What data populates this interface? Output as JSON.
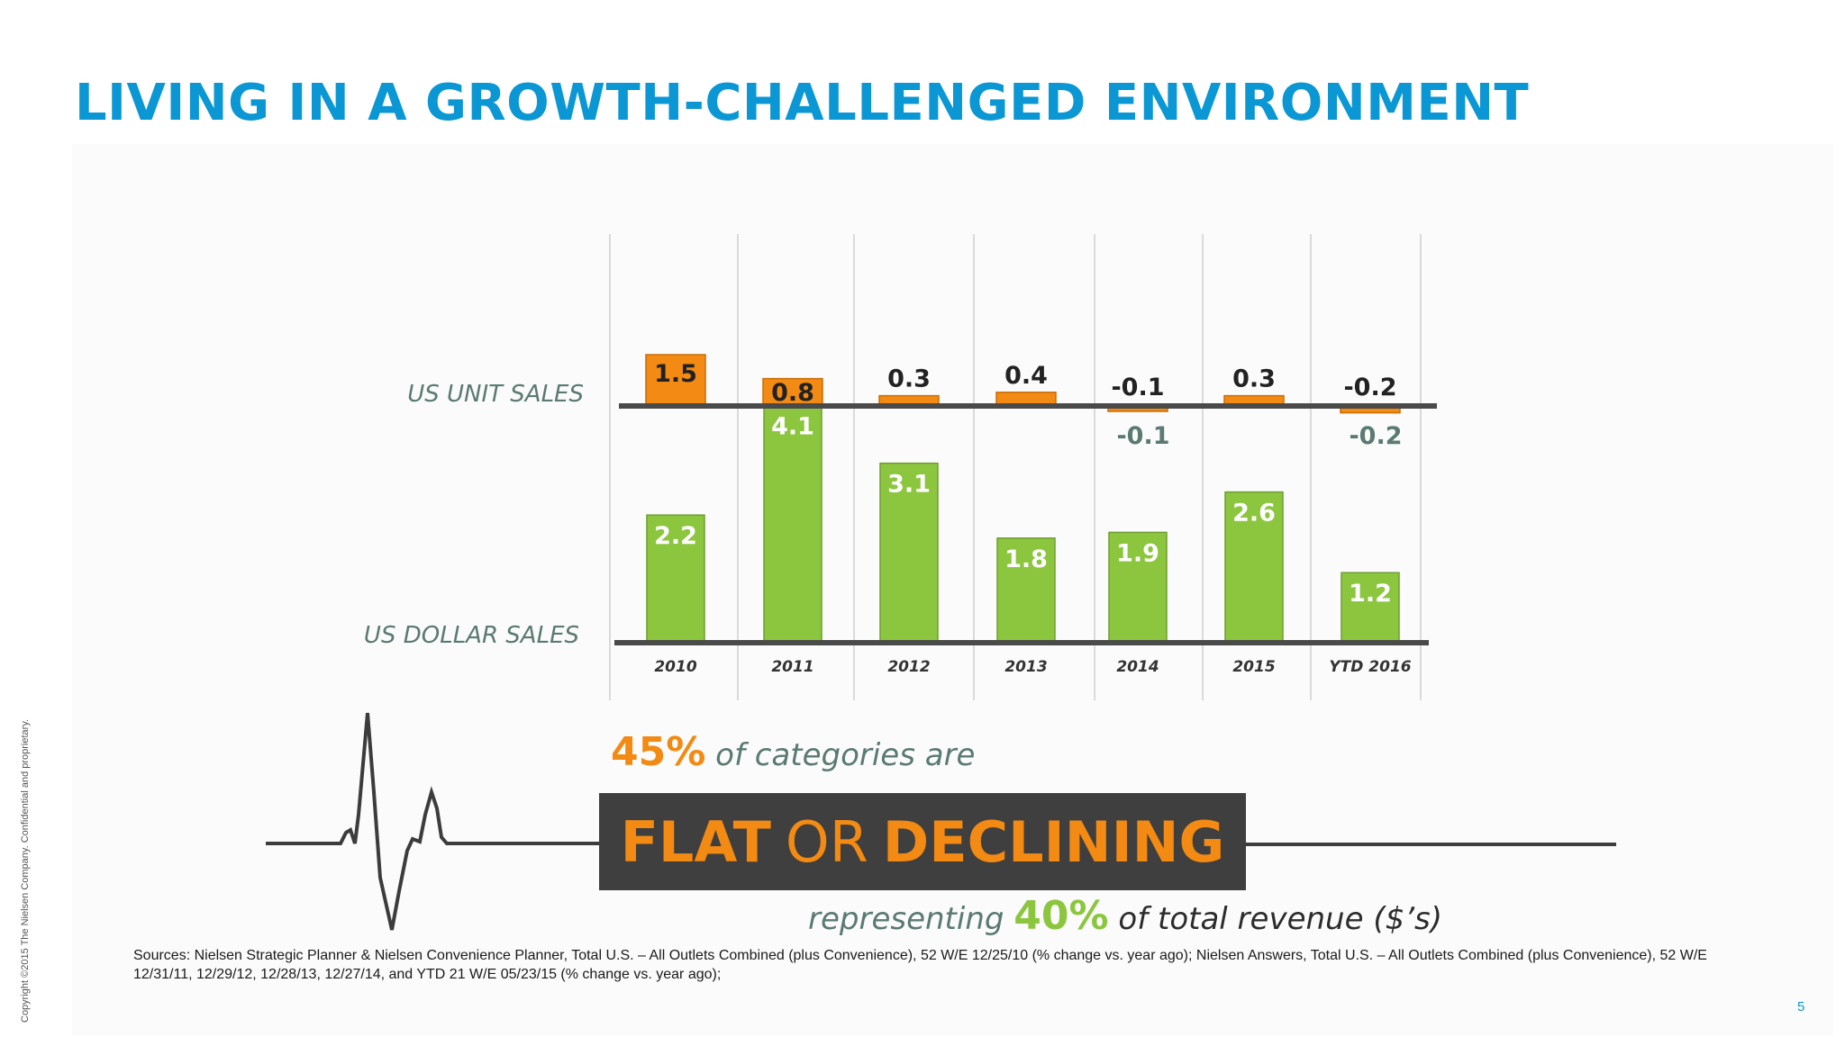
{
  "title": "LIVING IN A GROWTH-CHALLENGED ENVIRONMENT",
  "colors": {
    "title": "#0b97d3",
    "orange": "#f28a13",
    "green": "#8cc63f",
    "label_gray": "#5a7a72",
    "banner_bg": "#3f3f3f"
  },
  "chart_data": {
    "type": "bar",
    "categories": [
      "2010",
      "2011",
      "2012",
      "2013",
      "2014",
      "2015",
      "YTD 2016"
    ],
    "series": [
      {
        "name": "US UNIT SALES",
        "values": [
          1.5,
          0.8,
          0.3,
          0.4,
          -0.1,
          0.3,
          -0.2
        ]
      },
      {
        "name": "US DOLLAR SALES",
        "values": [
          2.2,
          4.1,
          3.1,
          1.8,
          1.9,
          2.6,
          1.2
        ]
      }
    ],
    "unit_labels": [
      "1.5",
      "0.8",
      "0.3",
      "0.4",
      "-0.1",
      "0.3",
      "-0.2"
    ],
    "unit_labels_below": [
      "",
      "",
      "",
      "",
      "-0.1",
      "",
      "-0.2"
    ],
    "dollar_labels": [
      "2.2",
      "4.1",
      "3.1",
      "1.8",
      "1.9",
      "2.6",
      "1.2"
    ],
    "unit_axis_label": "US UNIT SALES",
    "dollar_axis_label": "US DOLLAR SALES",
    "units": "% change vs. year ago"
  },
  "stat1": {
    "pct": "45%",
    "text": "of categories are"
  },
  "banner": {
    "word1": "FLAT",
    "word2": "OR",
    "word3": "DECLINING"
  },
  "stat2": {
    "pre": "representing",
    "pct": "40%",
    "text": "of total revenue ($’s)"
  },
  "sources": "Sources:  Nielsen Strategic Planner & Nielsen Convenience Planner, Total U.S. – All Outlets Combined (plus Convenience), 52 W/E 12/25/10 (% change vs. year ago); Nielsen Answers, Total U.S. – All Outlets Combined (plus Convenience), 52 W/E 12/31/11, 12/29/12, 12/28/13, 12/27/14, and YTD 21 W/E 05/23/15 (% change vs. year ago);",
  "copyright": "Copyright ©2015 The Nielsen Company. Confidential and proprietary.",
  "page_number": "5"
}
